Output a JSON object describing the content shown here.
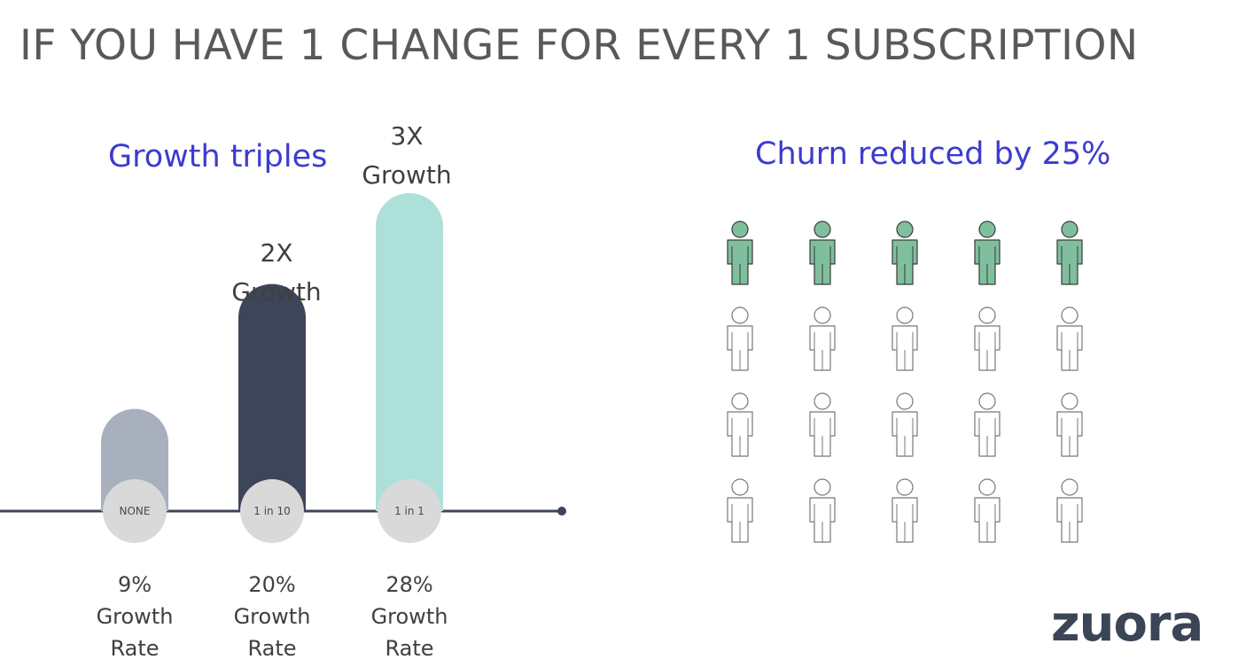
{
  "slide": {
    "title": "IF YOU HAVE 1 CHANGE FOR EVERY 1 SUBSCRIPTION",
    "logo_text": "zuora"
  },
  "growth_section": {
    "heading": "Growth triples",
    "heading_color": "#3b3bd0"
  },
  "churn_section": {
    "heading": "Churn reduced by 25%",
    "total_people": 20,
    "highlighted_people": 5,
    "highlight_color": "#7fbf9d",
    "outline_color": "#777777"
  },
  "chart_data": {
    "type": "bar",
    "categories": [
      "NONE",
      "1 in 10",
      "1 in 1"
    ],
    "values": [
      9,
      20,
      28
    ],
    "value_unit": "%",
    "value_label": "Growth Rate",
    "bar_captions": [
      {
        "line1": "",
        "line2": ""
      },
      {
        "line1": "2X",
        "line2": "Growth"
      },
      {
        "line1": "3X",
        "line2": "Growth"
      }
    ],
    "rate_labels": [
      {
        "value": "9%",
        "line2": "Growth",
        "line3": "Rate"
      },
      {
        "value": "20%",
        "line2": "Growth",
        "line3": "Rate"
      },
      {
        "value": "28%",
        "line2": "Growth",
        "line3": "Rate"
      }
    ],
    "colors": [
      "#a7b0bc",
      "#3c4559",
      "#ace0d8"
    ],
    "ylim": [
      0,
      28
    ],
    "grid": false,
    "legend": "none"
  }
}
